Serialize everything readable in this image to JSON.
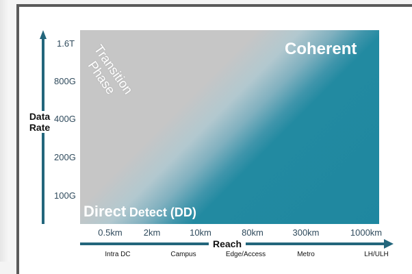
{
  "y_axis": {
    "label_line1": "Data",
    "label_line2": "Rate",
    "ticks": [
      "1.6T",
      "800G",
      "400G",
      "200G",
      "100G"
    ]
  },
  "x_axis": {
    "label": "Reach",
    "ticks": [
      "0.5km",
      "2km",
      "10km",
      "80km",
      "300km",
      "1000km"
    ],
    "segments": [
      "Intra DC",
      "Campus",
      "Edge/Access",
      "Metro",
      "LH/ULH"
    ]
  },
  "regions": {
    "coherent": "Coherent",
    "transition_line1": "Transition",
    "transition_line2": "Phase",
    "direct_big": "Direct",
    "direct_small": "Detect (DD)"
  },
  "colors": {
    "coherent_teal": "#1f87a0",
    "direct_gray": "#c6c6c6",
    "arrow": "#23667c"
  }
}
